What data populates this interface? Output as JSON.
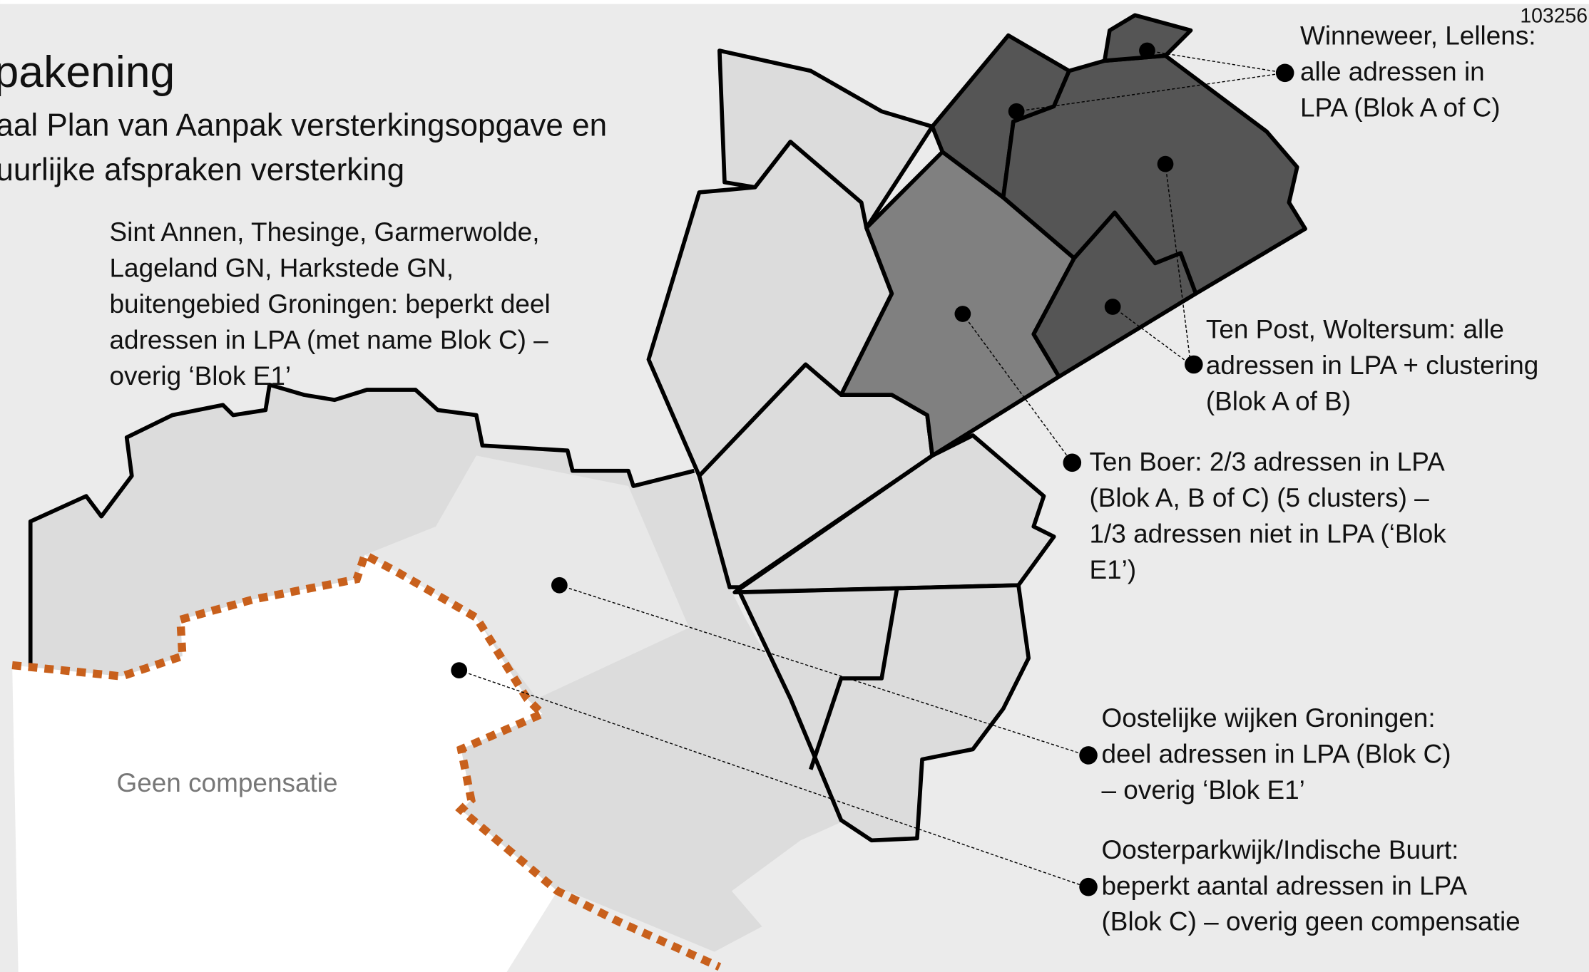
{
  "page_id": "103256",
  "title": "pakening",
  "subtitle": [
    "aal Plan van Aanpak versterkingsopgave en",
    "uurlijke afspraken versterking"
  ],
  "map_label": "Geen compensatie",
  "annotations": [
    {
      "lines": [
        "Winneweer, Lellens:",
        "alle adressen in",
        "LPA (Blok A of C)"
      ]
    },
    {
      "lines": [
        "Ten Post, Woltersum: alle",
        "adressen in LPA + clustering",
        "(Blok A of B)"
      ]
    },
    {
      "lines": [
        "Ten Boer: 2/3 adressen in LPA",
        "(Blok A, B of C) (5 clusters) –",
        "1/3 adressen niet in LPA (‘Blok",
        "E1’)"
      ]
    },
    {
      "lines": [
        "Sint Annen, Thesinge, Garmerwolde,",
        "Lageland GN, Harkstede GN,",
        "buitengebied Groningen: beperkt deel",
        "adressen in LPA (met name Blok C) –",
        "overig ‘Blok E1’"
      ]
    },
    {
      "lines": [
        "Oostelijke wijken Groningen:",
        "deel adressen in LPA (Blok C)",
        "– overig ‘Blok E1’"
      ]
    },
    {
      "lines": [
        "Oosterparkwijk/Indische Buurt:",
        "beperkt aantal adressen in LPA",
        "(Blok C) – overig geen compensatie"
      ]
    }
  ]
}
